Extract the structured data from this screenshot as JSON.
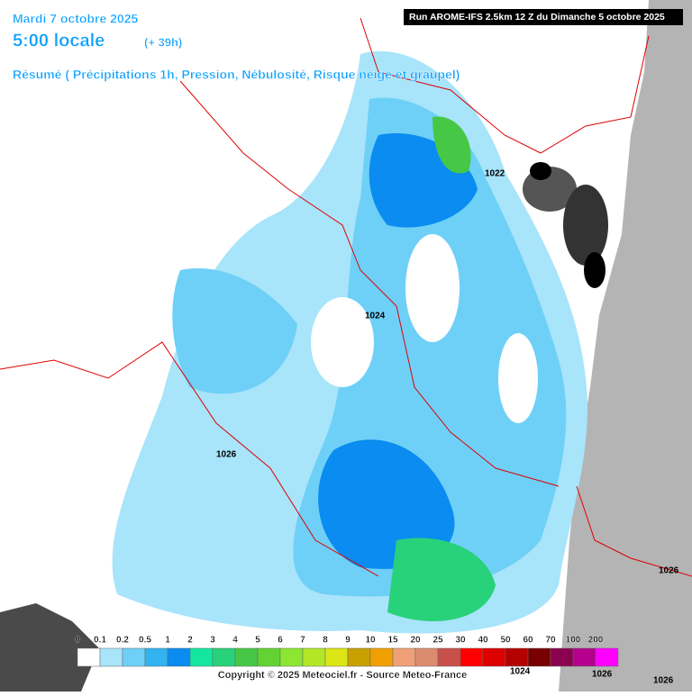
{
  "header": {
    "date": "Mardi 7 octobre 2025",
    "time": "5:00 locale",
    "lead": "(+ 39h)",
    "summary": "Résumé ( Précipitations 1h, Pression, Nébulosité, Risque neige et graupel)",
    "run": "Run AROME-IFS 2.5km 12 Z du Dimanche 5 octobre 2025"
  },
  "isobars": [
    "1022",
    "1024",
    "1026",
    "1026",
    "1024",
    "1026",
    "1026"
  ],
  "legend": {
    "labels": [
      "0",
      "0.1",
      "0.2",
      "0.5",
      "1",
      "2",
      "3",
      "4",
      "5",
      "6",
      "7",
      "8",
      "9",
      "10",
      "15",
      "20",
      "25",
      "30",
      "40",
      "50",
      "60",
      "70",
      "100",
      "200"
    ],
    "colors": [
      "#ffffff",
      "#a8e4fa",
      "#6ed0f7",
      "#32b4f0",
      "#0a8cf0",
      "#14e6a0",
      "#28d27a",
      "#46c846",
      "#64d232",
      "#8ce632",
      "#b4e628",
      "#dce614",
      "#c8a000",
      "#f0a000",
      "#f0a078",
      "#dc8c6e",
      "#c8504b",
      "#ff0000",
      "#dc0000",
      "#b40000",
      "#780000",
      "#8c0050",
      "#b4008c",
      "#ff00ff"
    ]
  },
  "copyright": "Copyright © 2025 Meteociel.fr - Source Meteo-France"
}
